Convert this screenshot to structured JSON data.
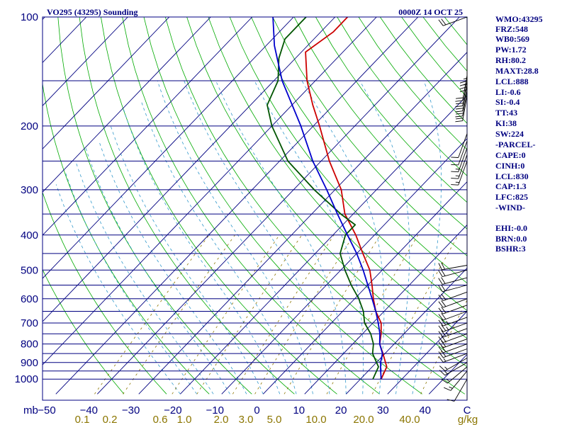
{
  "header": {
    "title": "VO295 (43295) Sounding",
    "time": "0000Z 14 OCT 25"
  },
  "colors": {
    "frame": "#000080",
    "isobar": "#000080",
    "isotherm": "#000080",
    "dry_adiabat": "#00aa00",
    "moist_adiabat": "#3399cc",
    "mixing_ratio": "#8b7500",
    "temperature": "#cc0000",
    "dewpoint": "#005500",
    "parcel": "#0000cc",
    "wind_barb": "#000000"
  },
  "chart_data": {
    "type": "line",
    "title": "VO295 (43295) Sounding",
    "subtitle": "0000Z 14 OCT 25",
    "xlabel": "",
    "ylabel": "mb",
    "pressure_ticks": [
      100,
      200,
      300,
      400,
      500,
      600,
      700,
      800,
      900,
      1000
    ],
    "isobars": [
      100,
      150,
      200,
      250,
      300,
      350,
      400,
      450,
      500,
      550,
      600,
      650,
      700,
      750,
      800,
      850,
      900,
      950,
      1000
    ],
    "temperature_ticks": [
      "-50",
      "-40",
      "-30",
      "-20",
      "-10",
      "0",
      "10",
      "20",
      "30",
      "40",
      "C"
    ],
    "mixing_ratio_ticks": [
      "0.1",
      "0.2",
      "0.6",
      "1.0",
      "2.0",
      "3.0",
      "5.0",
      "10.0",
      "20.0",
      "40.0",
      "g/kg"
    ],
    "plim": [
      1050,
      100
    ],
    "tlim_at_bottom": [
      -50,
      50
    ],
    "series": [
      {
        "name": "Temperature",
        "pressure": [
          1000,
          925,
          850,
          800,
          750,
          700,
          650,
          600,
          550,
          500,
          450,
          400,
          350,
          300,
          250,
          200,
          175,
          150,
          125,
          110,
          100
        ],
        "values": [
          25,
          23.5,
          19.5,
          16.5,
          14.5,
          12,
          8,
          4.5,
          1,
          -3,
          -8.5,
          -14.5,
          -22,
          -28.5,
          -38,
          -48.5,
          -55,
          -62,
          -69,
          -67,
          -67
        ]
      },
      {
        "name": "Dewpoint",
        "pressure": [
          1000,
          925,
          850,
          800,
          750,
          700,
          650,
          600,
          550,
          500,
          450,
          400,
          375,
          350,
          300,
          250,
          200,
          175,
          150,
          130,
          115,
          100
        ],
        "values": [
          23,
          21.5,
          17,
          15,
          12,
          8,
          5,
          1,
          -4,
          -9,
          -14,
          -17,
          -17,
          -23,
          -35,
          -48,
          -60,
          -66,
          -69,
          -74,
          -77,
          -77
        ]
      },
      {
        "name": "Parcel",
        "pressure": [
          1000,
          950,
          900,
          850,
          800,
          750,
          700,
          650,
          600,
          550,
          500,
          450,
          400,
          350,
          300,
          250,
          200,
          150,
          120,
          100
        ],
        "values": [
          25,
          23,
          21,
          19.4,
          16.5,
          14.2,
          11.3,
          8,
          4.2,
          0,
          -4.6,
          -10,
          -16.5,
          -23.8,
          -32,
          -42,
          -53,
          -68,
          -78,
          -85
        ]
      }
    ],
    "wind_barbs": [
      {
        "pressure": 1000,
        "dir": 210,
        "spd": 10
      },
      {
        "pressure": 950,
        "dir": 220,
        "spd": 15
      },
      {
        "pressure": 925,
        "dir": 230,
        "spd": 15
      },
      {
        "pressure": 900,
        "dir": 240,
        "spd": 15
      },
      {
        "pressure": 875,
        "dir": 240,
        "spd": 15
      },
      {
        "pressure": 850,
        "dir": 250,
        "spd": 15
      },
      {
        "pressure": 825,
        "dir": 250,
        "spd": 20
      },
      {
        "pressure": 800,
        "dir": 250,
        "spd": 20
      },
      {
        "pressure": 775,
        "dir": 250,
        "spd": 20
      },
      {
        "pressure": 750,
        "dir": 250,
        "spd": 20
      },
      {
        "pressure": 725,
        "dir": 250,
        "spd": 25
      },
      {
        "pressure": 700,
        "dir": 250,
        "spd": 25
      },
      {
        "pressure": 675,
        "dir": 250,
        "spd": 25
      },
      {
        "pressure": 650,
        "dir": 250,
        "spd": 20
      },
      {
        "pressure": 625,
        "dir": 250,
        "spd": 20
      },
      {
        "pressure": 600,
        "dir": 250,
        "spd": 20
      },
      {
        "pressure": 575,
        "dir": 250,
        "spd": 20
      },
      {
        "pressure": 550,
        "dir": 255,
        "spd": 20
      },
      {
        "pressure": 525,
        "dir": 255,
        "spd": 20
      },
      {
        "pressure": 500,
        "dir": 255,
        "spd": 20
      },
      {
        "pressure": 485,
        "dir": 260,
        "spd": 20
      },
      {
        "pressure": 250,
        "dir": 200,
        "spd": 15
      },
      {
        "pressure": 240,
        "dir": 200,
        "spd": 15
      },
      {
        "pressure": 230,
        "dir": 200,
        "spd": 15
      },
      {
        "pressure": 220,
        "dir": 200,
        "spd": 10
      },
      {
        "pressure": 210,
        "dir": 200,
        "spd": 10
      },
      {
        "pressure": 165,
        "dir": 190,
        "spd": 20
      },
      {
        "pressure": 160,
        "dir": 190,
        "spd": 20
      },
      {
        "pressure": 155,
        "dir": 190,
        "spd": 20
      },
      {
        "pressure": 150,
        "dir": 190,
        "spd": 20
      },
      {
        "pressure": 145,
        "dir": 190,
        "spd": 20
      },
      {
        "pressure": 135,
        "dir": 180,
        "spd": 25
      },
      {
        "pressure": 130,
        "dir": 180,
        "spd": 25
      },
      {
        "pressure": 100,
        "dir": 250,
        "spd": 20
      }
    ]
  },
  "indices": [
    "WMO:43295",
    "FRZ:548",
    "WB0:569",
    "PW:1.72",
    "RH:80.2",
    "MAXT:28.8",
    "LCL:888",
    "LI:-0.6",
    "SI:-0.4",
    "TT:43",
    "KI:38",
    "SW:224",
    "-PARCEL-",
    "CAPE:0",
    "CINH:0",
    "LCL:830",
    "CAP:1.3",
    "LFC:825",
    "-WIND-",
    "EHI:-0.0",
    "BRN:0.0",
    "BSHR:3"
  ]
}
